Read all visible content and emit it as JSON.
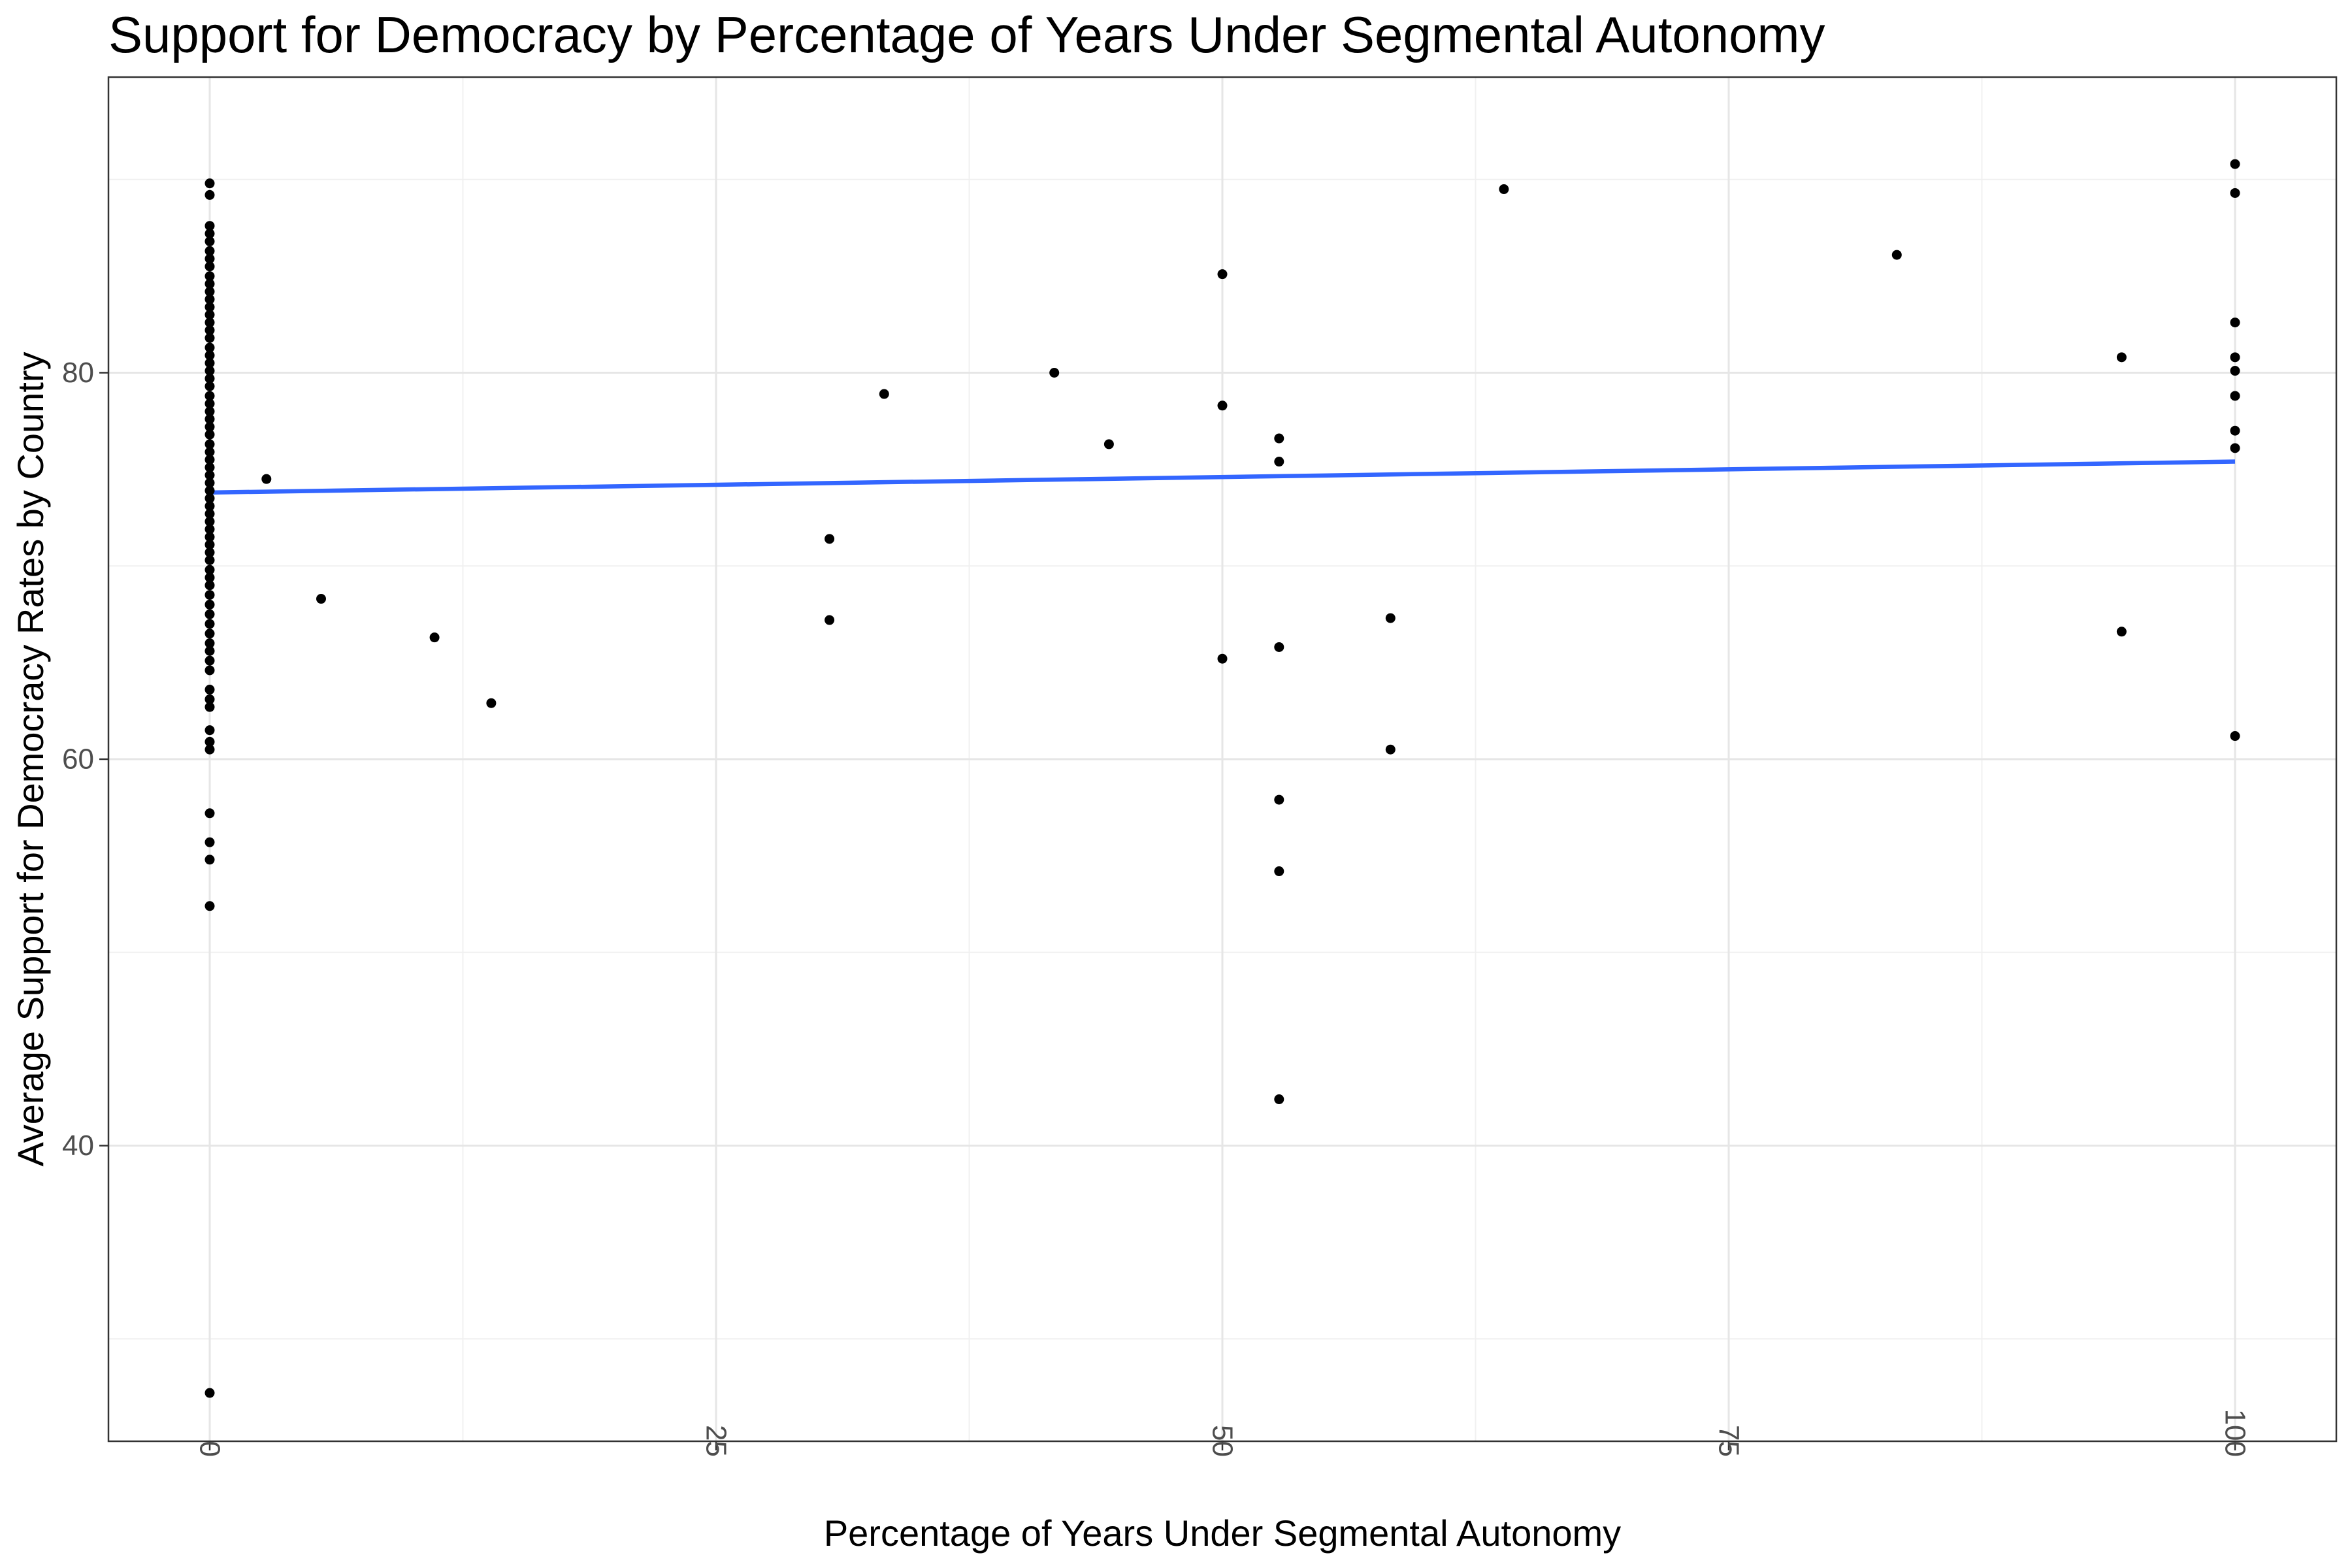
{
  "chart_data": {
    "type": "scatter",
    "title": "Support for Democracy by Percentage of Years Under Segmental Autonomy",
    "xlabel": "Percentage of Years Under Segmental Autonomy",
    "ylabel": "Average Support for Democracy Rates by Country",
    "xlim": [
      -5,
      105
    ],
    "ylim": [
      24.7,
      95.3
    ],
    "x_ticks": [
      0,
      25,
      50,
      75,
      100
    ],
    "y_ticks": [
      40,
      60,
      80
    ],
    "grid": true,
    "legend": "none",
    "point_color": "#000000",
    "trend_color": "#3366FF",
    "trend_line": {
      "method": "linear",
      "x": [
        0,
        100
      ],
      "y": [
        73.8,
        75.4
      ]
    },
    "points": [
      [
        0,
        89.8
      ],
      [
        0,
        89.2
      ],
      [
        0,
        87.6
      ],
      [
        0,
        87.2
      ],
      [
        0,
        86.8
      ],
      [
        0,
        86.3
      ],
      [
        0,
        85.9
      ],
      [
        0,
        85.5
      ],
      [
        0,
        85.0
      ],
      [
        0,
        84.6
      ],
      [
        0,
        84.2
      ],
      [
        0,
        83.8
      ],
      [
        0,
        83.4
      ],
      [
        0,
        83.0
      ],
      [
        0,
        82.6
      ],
      [
        0,
        82.2
      ],
      [
        0,
        81.8
      ],
      [
        0,
        81.3
      ],
      [
        0,
        80.9
      ],
      [
        0,
        80.5
      ],
      [
        0,
        80.1
      ],
      [
        0,
        79.7
      ],
      [
        0,
        79.3
      ],
      [
        0,
        78.8
      ],
      [
        0,
        78.4
      ],
      [
        0,
        78.0
      ],
      [
        0,
        77.6
      ],
      [
        0,
        77.2
      ],
      [
        0,
        76.8
      ],
      [
        0,
        76.3
      ],
      [
        0,
        75.9
      ],
      [
        0,
        75.5
      ],
      [
        0,
        75.1
      ],
      [
        0,
        74.7
      ],
      [
        0,
        74.3
      ],
      [
        0,
        73.9
      ],
      [
        0,
        73.5
      ],
      [
        0,
        73.1
      ],
      [
        0,
        72.7
      ],
      [
        0,
        72.3
      ],
      [
        0,
        71.9
      ],
      [
        0,
        71.5
      ],
      [
        0,
        71.1
      ],
      [
        0,
        70.7
      ],
      [
        0,
        70.3
      ],
      [
        0,
        69.8
      ],
      [
        0,
        69.4
      ],
      [
        0,
        69.0
      ],
      [
        0,
        68.5
      ],
      [
        0,
        68.0
      ],
      [
        0,
        67.5
      ],
      [
        0,
        67.0
      ],
      [
        0,
        66.5
      ],
      [
        0,
        66.0
      ],
      [
        0,
        65.6
      ],
      [
        0,
        65.1
      ],
      [
        0,
        64.6
      ],
      [
        0,
        63.6
      ],
      [
        0,
        63.1
      ],
      [
        0,
        62.7
      ],
      [
        0,
        61.5
      ],
      [
        0,
        60.9
      ],
      [
        0,
        60.5
      ],
      [
        0,
        57.2
      ],
      [
        0,
        55.7
      ],
      [
        0,
        54.8
      ],
      [
        0,
        52.4
      ],
      [
        0,
        27.2
      ],
      [
        2.8,
        74.5
      ],
      [
        5.5,
        68.3
      ],
      [
        11.1,
        66.3
      ],
      [
        13.9,
        62.9
      ],
      [
        30.6,
        71.4
      ],
      [
        30.6,
        67.2
      ],
      [
        33.3,
        78.9
      ],
      [
        41.7,
        80.0
      ],
      [
        44.4,
        76.3
      ],
      [
        50,
        85.1
      ],
      [
        50,
        78.3
      ],
      [
        50,
        65.2
      ],
      [
        52.8,
        76.6
      ],
      [
        52.8,
        75.4
      ],
      [
        52.8,
        65.8
      ],
      [
        52.8,
        57.9
      ],
      [
        52.8,
        54.2
      ],
      [
        52.8,
        42.4
      ],
      [
        58.3,
        67.3
      ],
      [
        58.3,
        60.5
      ],
      [
        63.9,
        89.5
      ],
      [
        83.3,
        86.1
      ],
      [
        94.4,
        80.8
      ],
      [
        94.4,
        66.6
      ],
      [
        100,
        90.8
      ],
      [
        100,
        89.3
      ],
      [
        100,
        82.6
      ],
      [
        100,
        80.8
      ],
      [
        100,
        80.1
      ],
      [
        100,
        78.8
      ],
      [
        100,
        77.0
      ],
      [
        100,
        76.1
      ],
      [
        100,
        61.2
      ]
    ]
  }
}
